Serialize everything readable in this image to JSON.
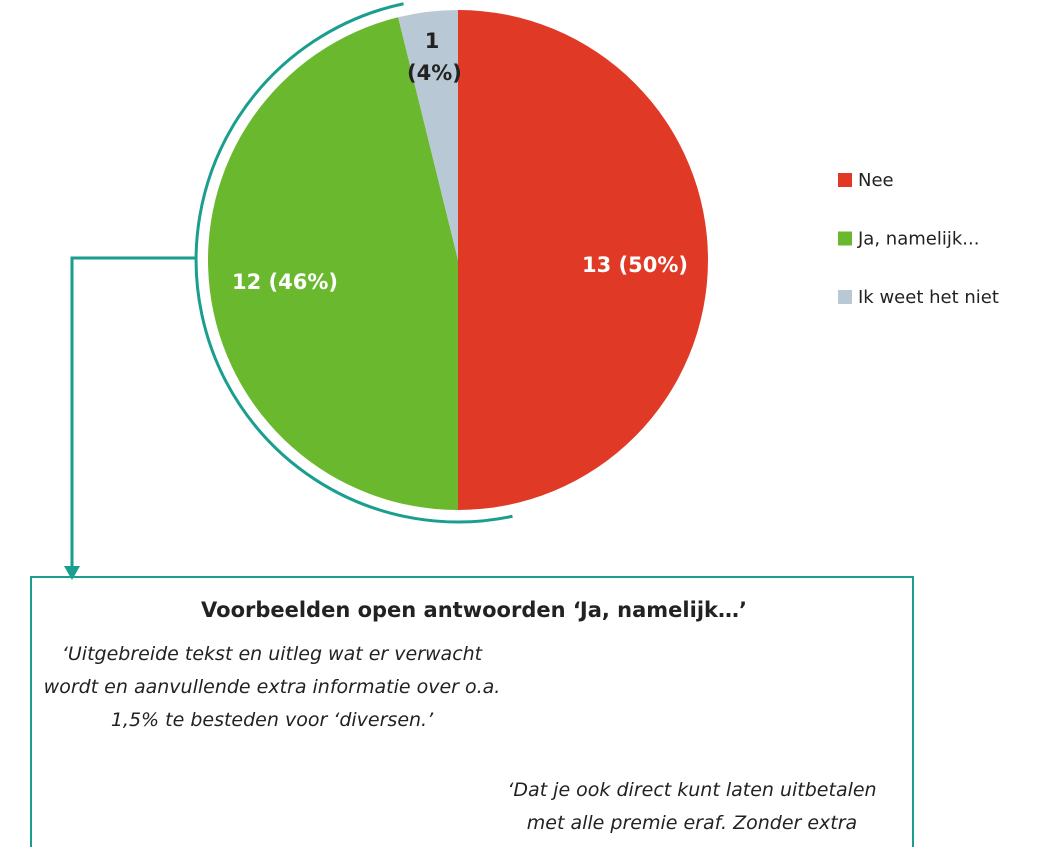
{
  "chart_data": {
    "type": "pie",
    "categories": [
      "Nee",
      "Ja, namelijk...",
      "Ik weet het niet"
    ],
    "values": [
      13,
      12,
      1
    ],
    "value_labels": [
      "13 (50%)",
      "12 (46%)",
      "1 (4%)"
    ],
    "colors": [
      "#e03a27",
      "#6ab82e",
      "#b8c9d5"
    ],
    "legend": "right",
    "annotation": {
      "title": "Voorbeelden open antwoorden ‘Ja, namelijk…’",
      "quotes": [
        "‘Uitgebreide tekst en uitleg wat er verwacht wordt en aanvullende extra informatie over o.a. 1,5% te besteden voor ‘diversen.’",
        "‘Dat je ook direct kunt laten uitbetalen met alle premie eraf. Zonder extra kosten.’"
      ]
    }
  }
}
